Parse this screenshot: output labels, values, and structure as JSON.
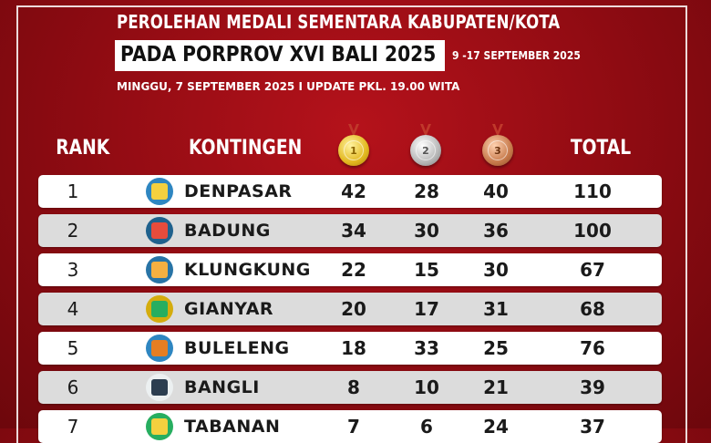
{
  "header": {
    "title_line1": "PEROLEHAN MEDALI SEMENTARA KABUPATEN/KOTA",
    "title_line2": "PADA PORPROV XVI BALI 2025",
    "dates": "9 -17 SEPTEMBER 2025",
    "update": "MINGGU, 7 SEPTEMBER 2025 I UPDATE PKL. 19.00 WITA"
  },
  "table": {
    "columns": {
      "rank": "RANK",
      "kontingen": "KONTINGEN",
      "gold": "1",
      "silver": "2",
      "bronze": "3",
      "total": "TOTAL"
    },
    "rows": [
      {
        "rank": "1",
        "name": "DENPASAR",
        "gold": "42",
        "silver": "28",
        "bronze": "40",
        "total": "110",
        "emblem": "denpasar-emblem"
      },
      {
        "rank": "2",
        "name": "BADUNG",
        "gold": "34",
        "silver": "30",
        "bronze": "36",
        "total": "100",
        "emblem": "badung-emblem"
      },
      {
        "rank": "3",
        "name": "KLUNGKUNG",
        "gold": "22",
        "silver": "15",
        "bronze": "30",
        "total": "67",
        "emblem": "klungkung-emblem"
      },
      {
        "rank": "4",
        "name": "GIANYAR",
        "gold": "20",
        "silver": "17",
        "bronze": "31",
        "total": "68",
        "emblem": "gianyar-emblem"
      },
      {
        "rank": "5",
        "name": "BULELENG",
        "gold": "18",
        "silver": "33",
        "bronze": "25",
        "total": "76",
        "emblem": "buleleng-emblem"
      },
      {
        "rank": "6",
        "name": "BANGLI",
        "gold": "8",
        "silver": "10",
        "bronze": "21",
        "total": "39",
        "emblem": "bangli-emblem"
      },
      {
        "rank": "7",
        "name": "TABANAN",
        "gold": "7",
        "silver": "6",
        "bronze": "24",
        "total": "37",
        "emblem": "tabanan-emblem"
      }
    ]
  },
  "colors": {
    "background": "#a50f17",
    "gold": "#e3b820",
    "silver": "#b8b8b8",
    "bronze": "#c77a4b"
  }
}
